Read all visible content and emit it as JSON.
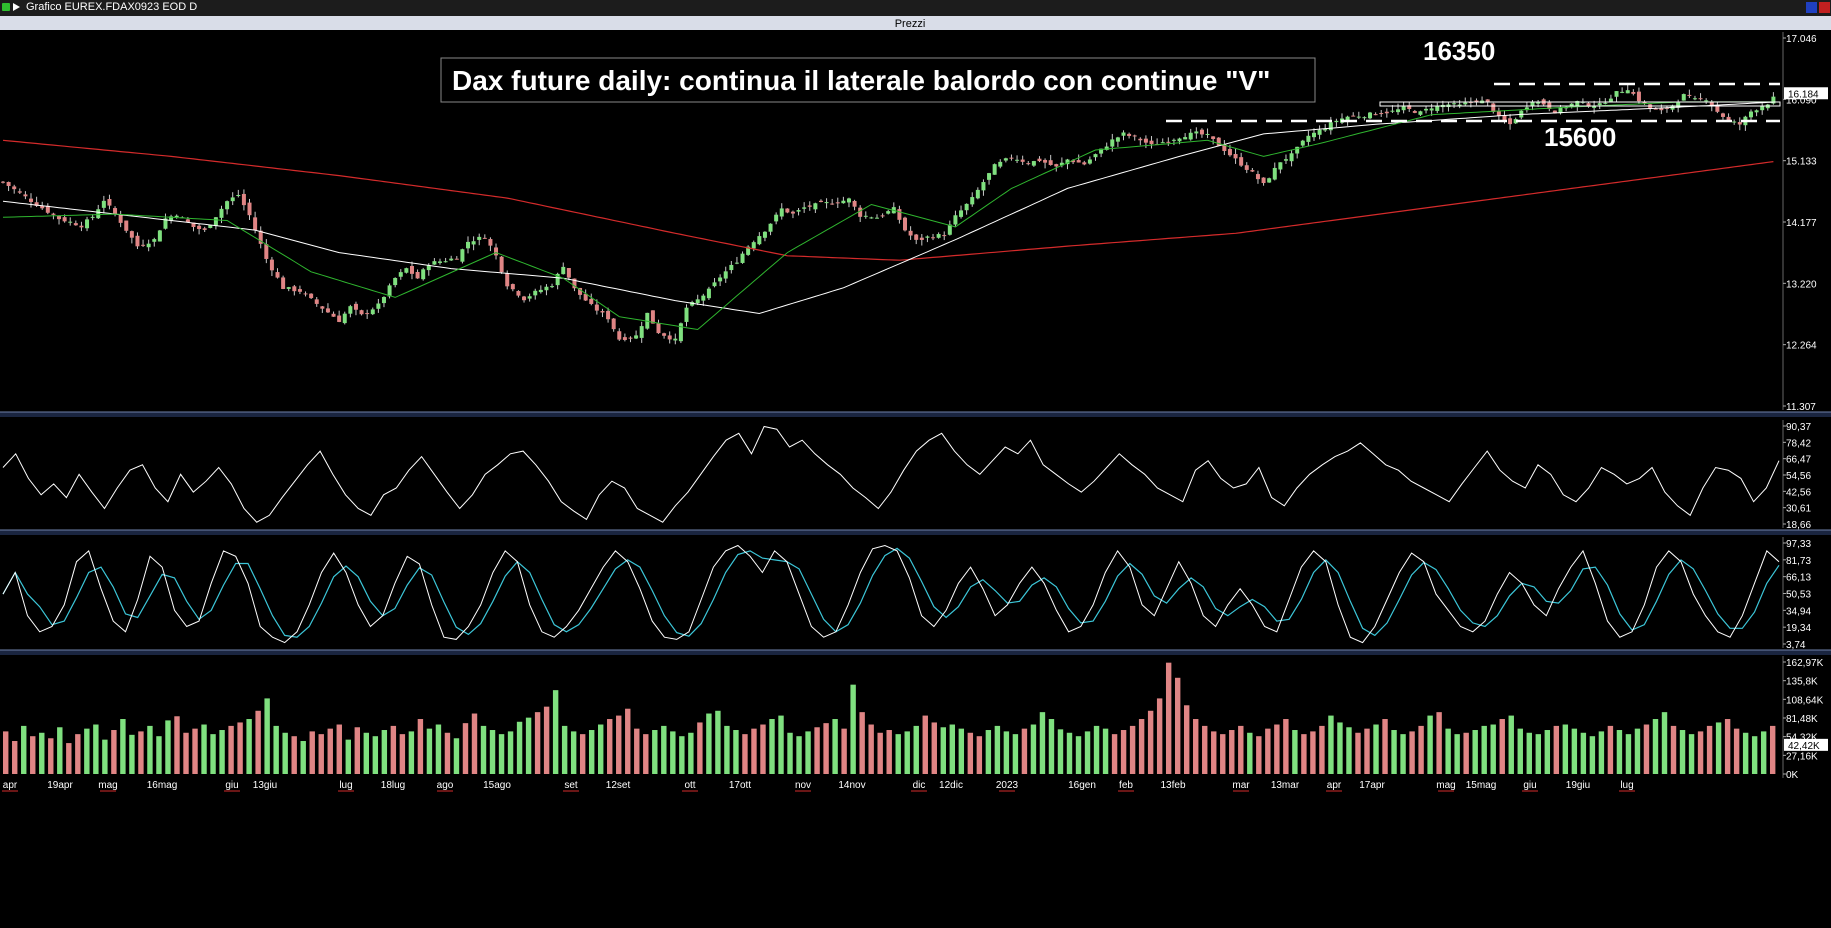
{
  "window": {
    "title": "Grafico EUREX.FDAX0923 EOD D",
    "panel_title": "Prezzi"
  },
  "annotations": {
    "headline": "Dax future daily: continua il laterale balordo con continue \"V\"",
    "upper_level": "16350",
    "lower_level": "15600"
  },
  "colors": {
    "background": "#000000",
    "candle_up": "#7fe07f",
    "candle_down": "#e08585",
    "ma_short": "#2fb52f",
    "ma_mid": "#ffffff",
    "ma_long": "#d42b2b",
    "stoch_k": "#ffffff",
    "stoch_d": "#3cc6d8",
    "separator": "#6e7fa8"
  },
  "chart_data": [
    {
      "type": "candlestick",
      "panel": "price",
      "y_ticks": [
        "17.046",
        "16.090",
        "15.133",
        "14.177",
        "13.220",
        "12.264",
        "11.307"
      ],
      "ylim": [
        11307,
        17046
      ],
      "last_price_label": "16.184",
      "x_ticks": [
        "apr",
        "19apr",
        "mag",
        "16mag",
        "giu",
        "13giu",
        "lug",
        "18lug",
        "ago",
        "15ago",
        "set",
        "12set",
        "ott",
        "17ott",
        "nov",
        "14nov",
        "dic",
        "12dic",
        "2023",
        "16gen",
        "feb",
        "13feb",
        "mar",
        "13mar",
        "apr",
        "17apr",
        "mag",
        "15mag",
        "giu",
        "19giu",
        "lug"
      ],
      "x_ticks_red": [
        "apr",
        "mag",
        "giu",
        "lug",
        "ago",
        "set",
        "ott",
        "nov",
        "dic",
        "2023",
        "feb",
        "mar",
        "apr",
        "mag",
        "giu",
        "lug"
      ],
      "close_path": [
        [
          0,
          14800
        ],
        [
          6,
          14450
        ],
        [
          10,
          14230
        ],
        [
          14,
          14120
        ],
        [
          16,
          14260
        ],
        [
          18,
          14520
        ],
        [
          21,
          14180
        ],
        [
          24,
          13800
        ],
        [
          27,
          13900
        ],
        [
          29,
          14230
        ],
        [
          31,
          14300
        ],
        [
          34,
          14100
        ],
        [
          36,
          14040
        ],
        [
          38,
          14270
        ],
        [
          40,
          14500
        ],
        [
          42,
          14600
        ],
        [
          44,
          14280
        ],
        [
          47,
          13600
        ],
        [
          50,
          13150
        ],
        [
          53,
          13100
        ],
        [
          56,
          12900
        ],
        [
          60,
          12640
        ],
        [
          62,
          12850
        ],
        [
          64,
          12720
        ],
        [
          67,
          12880
        ],
        [
          70,
          13300
        ],
        [
          72,
          13450
        ],
        [
          74,
          13300
        ],
        [
          76,
          13530
        ],
        [
          79,
          13580
        ],
        [
          81,
          13620
        ],
        [
          83,
          13870
        ],
        [
          86,
          13950
        ],
        [
          88,
          13650
        ],
        [
          90,
          13200
        ],
        [
          93,
          12980
        ],
        [
          95,
          13080
        ],
        [
          98,
          13200
        ],
        [
          100,
          13500
        ],
        [
          102,
          13130
        ],
        [
          105,
          12870
        ],
        [
          108,
          12680
        ],
        [
          110,
          12350
        ],
        [
          113,
          12400
        ],
        [
          115,
          12750
        ],
        [
          117,
          12460
        ],
        [
          120,
          12330
        ],
        [
          122,
          12840
        ],
        [
          124,
          12960
        ],
        [
          126,
          13110
        ],
        [
          128,
          13320
        ],
        [
          131,
          13570
        ],
        [
          133,
          13800
        ],
        [
          136,
          14050
        ],
        [
          139,
          14380
        ],
        [
          141,
          14300
        ],
        [
          143,
          14400
        ],
        [
          146,
          14460
        ],
        [
          149,
          14490
        ],
        [
          151,
          14530
        ],
        [
          153,
          14280
        ],
        [
          156,
          14250
        ],
        [
          159,
          14380
        ],
        [
          161,
          14050
        ],
        [
          163,
          13880
        ],
        [
          165,
          13940
        ],
        [
          168,
          13980
        ],
        [
          170,
          14260
        ],
        [
          173,
          14540
        ],
        [
          175,
          14800
        ],
        [
          177,
          15050
        ],
        [
          180,
          15190
        ],
        [
          183,
          15100
        ],
        [
          185,
          15140
        ],
        [
          188,
          15030
        ],
        [
          190,
          15150
        ],
        [
          193,
          15080
        ],
        [
          196,
          15300
        ],
        [
          198,
          15450
        ],
        [
          200,
          15550
        ],
        [
          203,
          15460
        ],
        [
          205,
          15370
        ],
        [
          208,
          15450
        ],
        [
          211,
          15530
        ],
        [
          213,
          15560
        ],
        [
          215,
          15520
        ],
        [
          217,
          15380
        ],
        [
          220,
          15150
        ],
        [
          223,
          14940
        ],
        [
          225,
          14760
        ],
        [
          228,
          15120
        ],
        [
          230,
          15220
        ],
        [
          233,
          15520
        ],
        [
          235,
          15600
        ],
        [
          238,
          15760
        ],
        [
          240,
          15820
        ],
        [
          243,
          15840
        ],
        [
          245,
          15870
        ],
        [
          248,
          15900
        ],
        [
          250,
          15950
        ],
        [
          253,
          15880
        ],
        [
          255,
          15970
        ],
        [
          258,
          16010
        ],
        [
          260,
          15990
        ],
        [
          263,
          16080
        ],
        [
          265,
          16030
        ],
        [
          267,
          15800
        ],
        [
          269,
          15700
        ],
        [
          271,
          15900
        ],
        [
          273,
          16080
        ],
        [
          275,
          16020
        ],
        [
          277,
          15900
        ],
        [
          279,
          15980
        ],
        [
          281,
          16050
        ],
        [
          283,
          16000
        ],
        [
          285,
          16000
        ],
        [
          288,
          16190
        ],
        [
          290,
          16260
        ],
        [
          292,
          16080
        ],
        [
          294,
          15950
        ],
        [
          296,
          15900
        ],
        [
          298,
          16000
        ],
        [
          300,
          16150
        ],
        [
          302,
          16080
        ],
        [
          304,
          16100
        ],
        [
          306,
          15900
        ],
        [
          308,
          15750
        ],
        [
          310,
          15700
        ],
        [
          312,
          15900
        ],
        [
          315,
          16030
        ],
        [
          317,
          16184
        ]
      ],
      "ma_short_path": [
        [
          0,
          14250
        ],
        [
          20,
          14300
        ],
        [
          40,
          14200
        ],
        [
          55,
          13400
        ],
        [
          70,
          13000
        ],
        [
          88,
          13700
        ],
        [
          100,
          13300
        ],
        [
          110,
          12700
        ],
        [
          124,
          12500
        ],
        [
          140,
          13700
        ],
        [
          155,
          14450
        ],
        [
          170,
          14100
        ],
        [
          180,
          14700
        ],
        [
          195,
          15300
        ],
        [
          215,
          15450
        ],
        [
          225,
          15200
        ],
        [
          235,
          15400
        ],
        [
          255,
          15850
        ],
        [
          280,
          15970
        ],
        [
          300,
          16050
        ],
        [
          317,
          16050
        ]
      ],
      "ma_mid_path": [
        [
          0,
          14500
        ],
        [
          20,
          14300
        ],
        [
          45,
          14050
        ],
        [
          60,
          13700
        ],
        [
          80,
          13450
        ],
        [
          100,
          13300
        ],
        [
          120,
          12950
        ],
        [
          135,
          12750
        ],
        [
          150,
          13150
        ],
        [
          170,
          13900
        ],
        [
          190,
          14700
        ],
        [
          210,
          15200
        ],
        [
          225,
          15550
        ],
        [
          245,
          15700
        ],
        [
          270,
          15850
        ],
        [
          295,
          15950
        ],
        [
          317,
          16050
        ]
      ],
      "ma_long_path": [
        [
          0,
          15450
        ],
        [
          30,
          15200
        ],
        [
          60,
          14900
        ],
        [
          90,
          14550
        ],
        [
          120,
          14000
        ],
        [
          140,
          13650
        ],
        [
          160,
          13580
        ],
        [
          190,
          13800
        ],
        [
          220,
          14000
        ],
        [
          250,
          14350
        ],
        [
          280,
          14700
        ],
        [
          317,
          15130
        ]
      ]
    },
    {
      "type": "line",
      "panel": "oscillator",
      "y_ticks": [
        "90,37",
        "78,42",
        "66,47",
        "54,56",
        "42,56",
        "30,61",
        "18,66"
      ],
      "ylim": [
        18.66,
        90.37
      ],
      "values": [
        60,
        70,
        52,
        40,
        48,
        38,
        55,
        42,
        30,
        45,
        58,
        62,
        45,
        35,
        55,
        42,
        50,
        60,
        48,
        30,
        20,
        25,
        38,
        50,
        62,
        72,
        55,
        40,
        30,
        25,
        40,
        45,
        58,
        68,
        55,
        42,
        30,
        40,
        55,
        62,
        70,
        72,
        62,
        50,
        35,
        28,
        22,
        40,
        50,
        45,
        30,
        25,
        20,
        32,
        42,
        55,
        68,
        80,
        85,
        70,
        90,
        88,
        75,
        80,
        70,
        62,
        55,
        45,
        38,
        30,
        42,
        58,
        72,
        80,
        85,
        72,
        62,
        55,
        65,
        75,
        70,
        80,
        62,
        55,
        48,
        42,
        50,
        60,
        70,
        62,
        55,
        45,
        40,
        35,
        58,
        65,
        52,
        45,
        48,
        60,
        38,
        32,
        45,
        55,
        62,
        68,
        72,
        78,
        70,
        62,
        58,
        50,
        45,
        40,
        35,
        48,
        60,
        72,
        58,
        50,
        45,
        62,
        55,
        40,
        35,
        45,
        60,
        55,
        48,
        52,
        60,
        42,
        32,
        25,
        45,
        60,
        58,
        52,
        35,
        45,
        65
      ]
    },
    {
      "type": "line",
      "panel": "stochastic",
      "y_ticks": [
        "97,33",
        "81,73",
        "66,13",
        "50,53",
        "34,94",
        "19,34",
        "3,74"
      ],
      "ylim": [
        3.74,
        97.33
      ],
      "k_values": [
        50,
        70,
        30,
        15,
        20,
        40,
        80,
        90,
        55,
        25,
        15,
        45,
        85,
        75,
        35,
        20,
        25,
        60,
        90,
        85,
        60,
        20,
        10,
        5,
        15,
        40,
        70,
        88,
        70,
        40,
        20,
        30,
        60,
        85,
        78,
        40,
        10,
        8,
        20,
        40,
        70,
        90,
        80,
        40,
        15,
        10,
        20,
        35,
        55,
        75,
        90,
        80,
        55,
        25,
        10,
        8,
        15,
        45,
        75,
        90,
        95,
        85,
        70,
        90,
        80,
        50,
        20,
        10,
        15,
        40,
        70,
        92,
        95,
        90,
        65,
        30,
        20,
        35,
        60,
        75,
        55,
        30,
        40,
        60,
        75,
        60,
        35,
        15,
        20,
        40,
        70,
        90,
        75,
        40,
        30,
        55,
        80,
        60,
        30,
        20,
        40,
        55,
        40,
        20,
        15,
        45,
        75,
        90,
        80,
        40,
        10,
        5,
        20,
        45,
        70,
        88,
        80,
        50,
        35,
        20,
        15,
        25,
        50,
        70,
        60,
        40,
        30,
        55,
        75,
        90,
        60,
        25,
        10,
        15,
        40,
        75,
        90,
        80,
        50,
        30,
        15,
        10,
        30,
        60,
        90,
        80
      ]
    },
    {
      "type": "bar",
      "panel": "volume",
      "y_ticks": [
        "162,97K",
        "135,8K",
        "108,64K",
        "81,48K",
        "54,32K",
        "27,16K",
        "0K"
      ],
      "ylim": [
        0,
        162970
      ],
      "last_volume_label": "42,42K",
      "values": [
        62,
        48,
        70,
        55,
        60,
        52,
        68,
        45,
        58,
        66,
        72,
        50,
        64,
        80,
        57,
        62,
        70,
        55,
        78,
        84,
        60,
        66,
        72,
        58,
        64,
        70,
        75,
        80,
        92,
        110,
        70,
        60,
        55,
        48,
        62,
        58,
        66,
        72,
        50,
        68,
        60,
        55,
        64,
        70,
        58,
        62,
        80,
        66,
        72,
        60,
        52,
        74,
        88,
        70,
        64,
        58,
        62,
        76,
        82,
        90,
        98,
        122,
        70,
        62,
        58,
        64,
        72,
        80,
        85,
        95,
        66,
        58,
        64,
        70,
        62,
        55,
        60,
        75,
        88,
        92,
        70,
        64,
        58,
        66,
        72,
        80,
        85,
        60,
        55,
        62,
        68,
        74,
        80,
        66,
        130,
        90,
        72,
        60,
        64,
        58,
        62,
        70,
        85,
        75,
        68,
        72,
        66,
        60,
        55,
        64,
        70,
        62,
        58,
        66,
        72,
        90,
        80,
        65,
        60,
        55,
        62,
        70,
        66,
        58,
        64,
        70,
        80,
        92,
        110,
        162,
        140,
        100,
        80,
        70,
        62,
        58,
        64,
        70,
        60,
        55,
        66,
        72,
        80,
        64,
        58,
        62,
        70,
        85,
        75,
        68,
        60,
        66,
        72,
        80,
        64,
        58,
        62,
        70,
        85,
        90,
        66,
        58,
        60,
        64,
        70,
        72,
        80,
        85,
        66,
        60,
        58,
        64,
        70,
        72,
        66,
        60,
        55,
        62,
        70,
        64,
        58,
        66,
        72,
        80,
        90,
        70,
        64,
        58,
        62,
        70,
        75,
        80,
        66,
        60,
        55,
        62,
        70
      ]
    }
  ]
}
